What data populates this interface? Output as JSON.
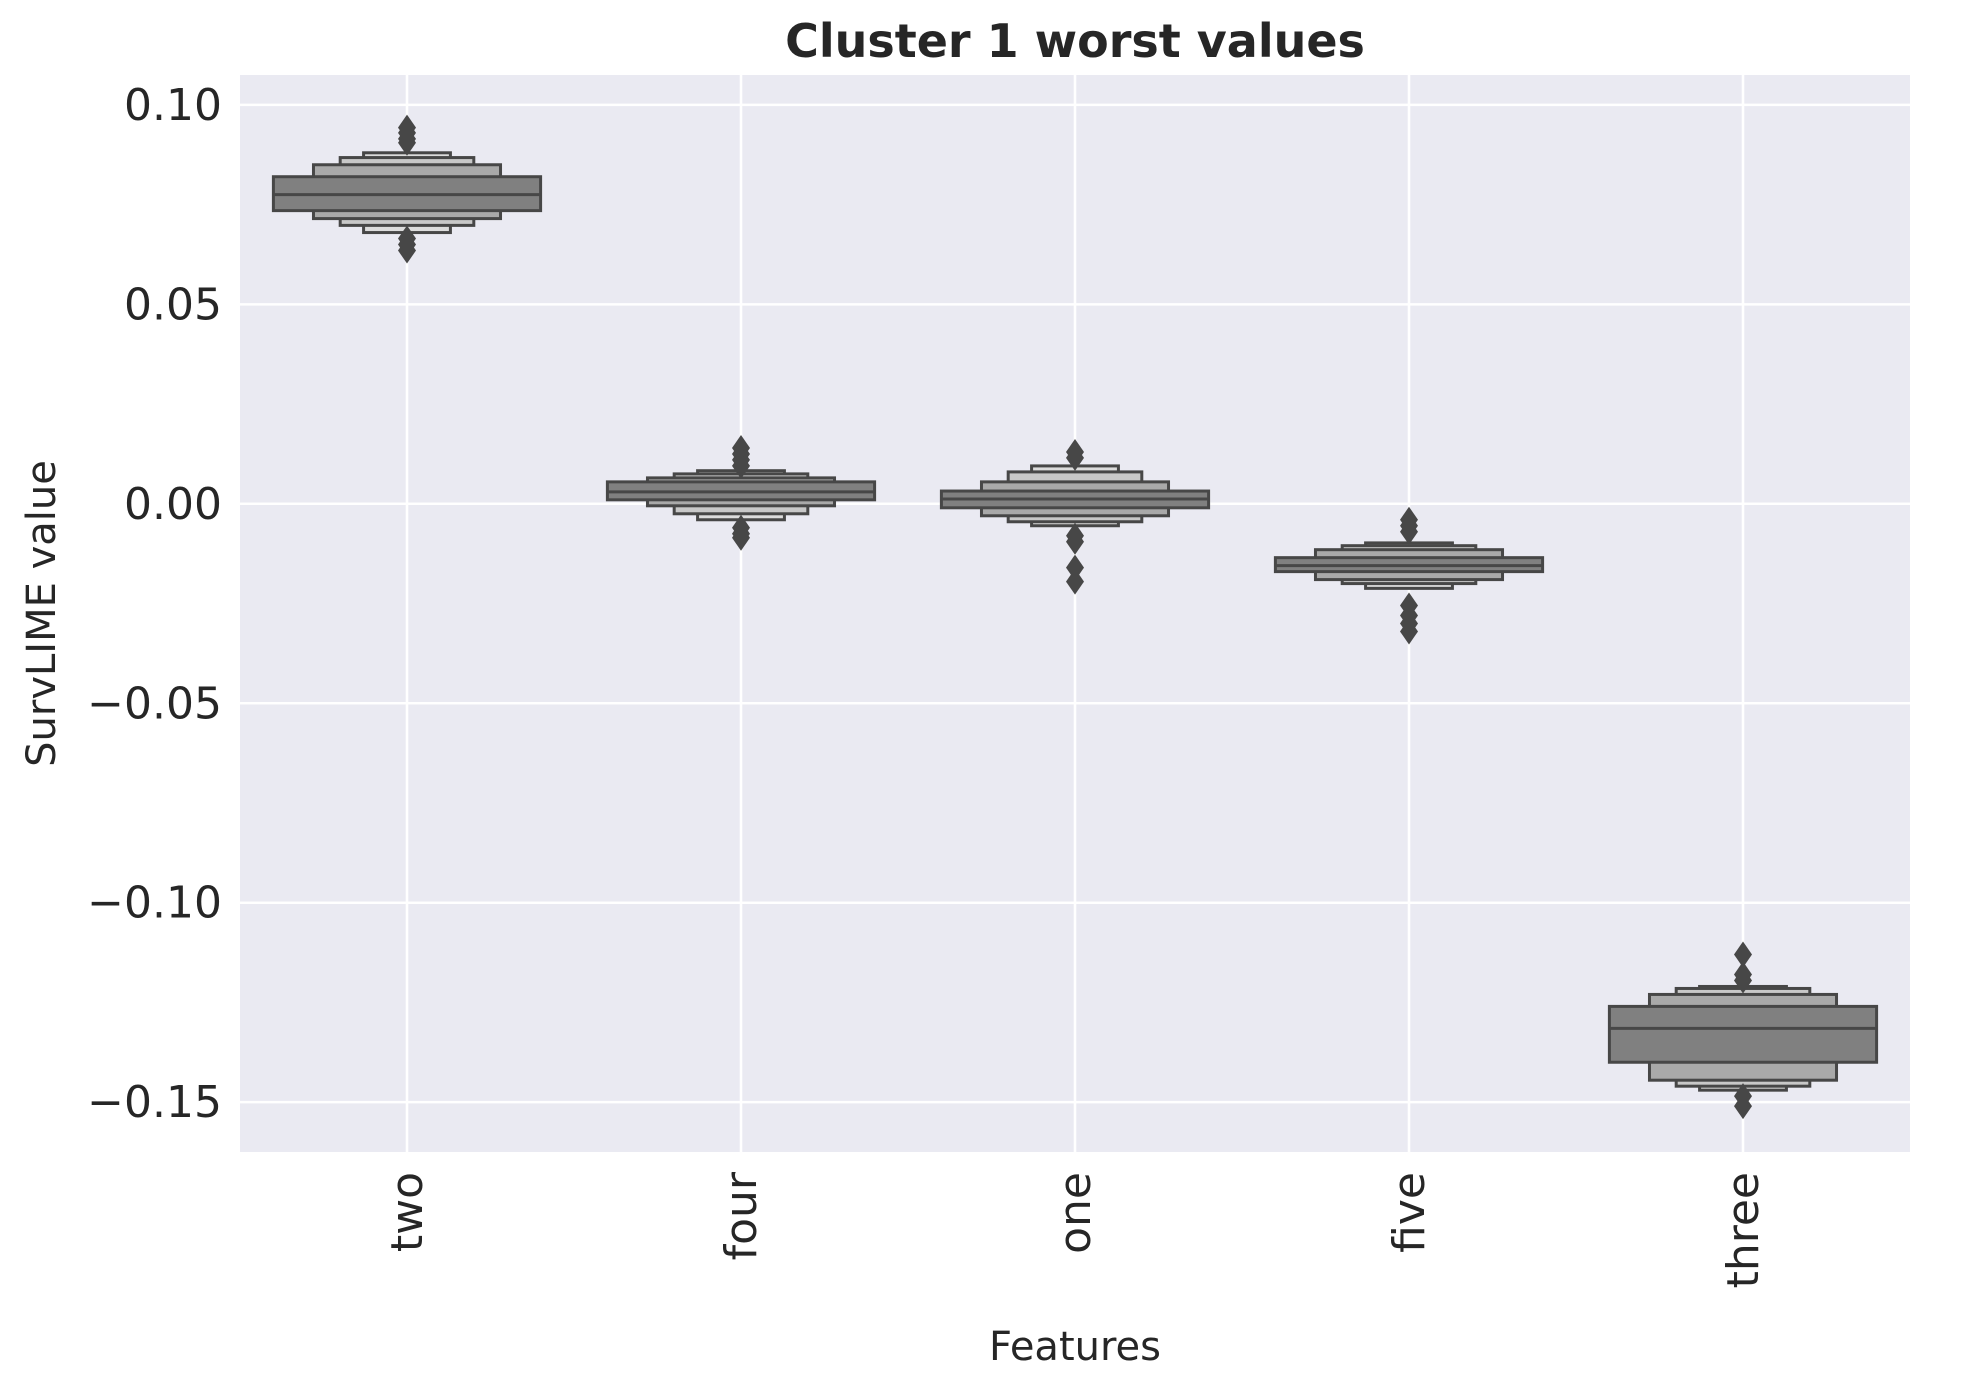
{
  "chart_data": {
    "type": "boxen",
    "title": "Cluster 1 worst values",
    "xlabel": "Features",
    "ylabel": "SurvLIME value",
    "ylim": [
      -0.1625,
      0.1075
    ],
    "yticks": [
      0.1,
      0.05,
      0.0,
      -0.05,
      -0.1,
      -0.15
    ],
    "ytick_labels": [
      "0.10",
      "0.05",
      "0.00",
      "−0.05",
      "−0.10",
      "−0.15"
    ],
    "categories": [
      "two",
      "four",
      "one",
      "five",
      "three"
    ],
    "grid": true,
    "colors": {
      "background": "#eaeaf2",
      "grid": "#ffffff",
      "box_fill": "#808080",
      "box_fill_light": "#a9a9a9",
      "box_fill_lighter": "#c8c8c8",
      "box_edge": "#474747",
      "outlier": "#474747",
      "text": "#262626"
    },
    "series": [
      {
        "category": "two",
        "median": 0.0775,
        "levels": [
          [
            0.0735,
            0.082
          ],
          [
            0.0715,
            0.085
          ],
          [
            0.0698,
            0.0868
          ],
          [
            0.068,
            0.088
          ]
        ],
        "outliers": [
          0.0943,
          0.093,
          0.0915,
          0.0905,
          0.0665,
          0.065,
          0.0635
        ]
      },
      {
        "category": "four",
        "median": 0.003,
        "levels": [
          [
            0.001,
            0.0055
          ],
          [
            -0.0005,
            0.0065
          ],
          [
            -0.0025,
            0.0075
          ],
          [
            -0.004,
            0.0083
          ]
        ],
        "outliers": [
          0.014,
          0.0125,
          0.011,
          0.0095,
          -0.006,
          -0.0075,
          -0.0085
        ]
      },
      {
        "category": "one",
        "median": 0.0012,
        "levels": [
          [
            -0.001,
            0.0032
          ],
          [
            -0.003,
            0.0055
          ],
          [
            -0.0045,
            0.008
          ],
          [
            -0.0055,
            0.0095
          ]
        ],
        "outliers": [
          0.013,
          0.0115,
          -0.008,
          -0.0095,
          -0.016,
          -0.0195
        ]
      },
      {
        "category": "five",
        "median": -0.0155,
        "levels": [
          [
            -0.017,
            -0.0135
          ],
          [
            -0.019,
            -0.0115
          ],
          [
            -0.02,
            -0.0105
          ],
          [
            -0.0212,
            -0.0098
          ]
        ],
        "outliers": [
          -0.004,
          -0.0055,
          -0.007,
          -0.0255,
          -0.028,
          -0.03,
          -0.032
        ]
      },
      {
        "category": "three",
        "median": -0.1315,
        "levels": [
          [
            -0.14,
            -0.126
          ],
          [
            -0.1445,
            -0.123
          ],
          [
            -0.146,
            -0.1215
          ],
          [
            -0.147,
            -0.121
          ]
        ],
        "outliers": [
          -0.113,
          -0.118,
          -0.1195,
          -0.1485,
          -0.151
        ]
      }
    ]
  }
}
